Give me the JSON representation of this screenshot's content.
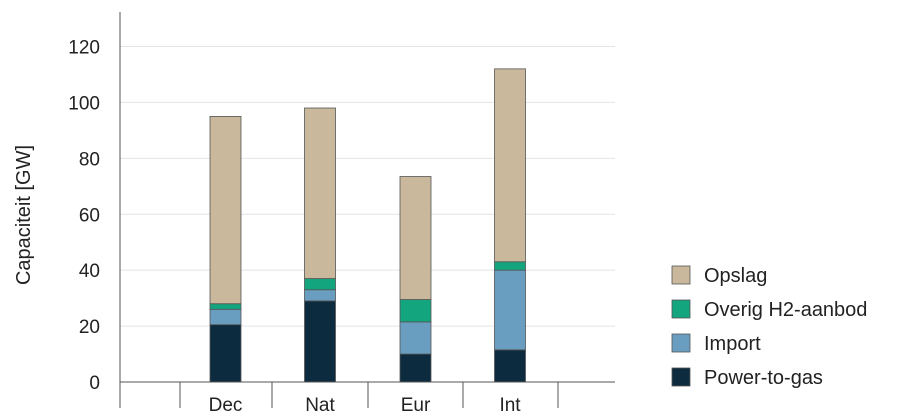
{
  "chart_data": {
    "type": "bar",
    "stacked": true,
    "categories": [
      "Dec",
      "Nat",
      "Eur",
      "Int"
    ],
    "series": [
      {
        "name": "Power-to-gas",
        "color": "#0d2b3e",
        "values": [
          20.5,
          29,
          10,
          11.5
        ]
      },
      {
        "name": "Import",
        "color": "#6a9ec1",
        "values": [
          5.5,
          4,
          11.5,
          28.5
        ]
      },
      {
        "name": "Overig H2-aanbod",
        "color": "#12a57e",
        "values": [
          2,
          4,
          8,
          3
        ]
      },
      {
        "name": "Opslag",
        "color": "#c9b89c",
        "values": [
          67,
          61,
          44,
          69
        ]
      }
    ],
    "ylabel": "Capaciteit [GW]",
    "xlabel": "",
    "title": "",
    "ylim": [
      0,
      130
    ],
    "yticks": [
      0,
      20,
      40,
      60,
      80,
      100,
      120
    ],
    "grid": true,
    "legend": {
      "placement": "right",
      "order": [
        "Opslag",
        "Overig H2-aanbod",
        "Import",
        "Power-to-gas"
      ]
    }
  }
}
